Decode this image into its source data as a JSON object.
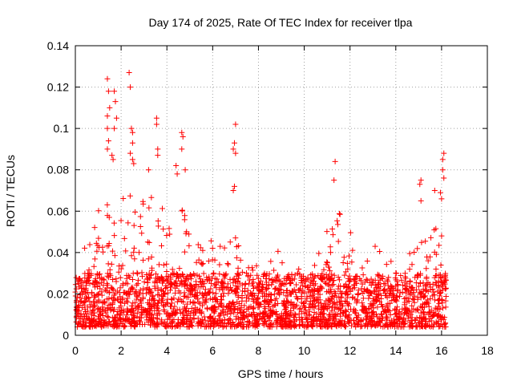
{
  "chart_data": {
    "type": "scatter",
    "title": "Day 174 of 2025, Rate Of TEC Index for receiver tlpa",
    "xlabel": "GPS time / hours",
    "ylabel": "ROTI / TECUs",
    "xlim": [
      0,
      18
    ],
    "ylim": [
      0,
      0.14
    ],
    "x_ticks": [
      "0",
      "2",
      "4",
      "6",
      "8",
      "10",
      "12",
      "14",
      "16",
      "18"
    ],
    "y_ticks": [
      "0",
      "0.02",
      "0.04",
      "0.06",
      "0.08",
      "0.1",
      "0.12",
      "0.14"
    ],
    "grid": true,
    "marker": "plus",
    "color": "#ff0000",
    "series": [
      {
        "x_range": [
          0,
          16.2
        ],
        "dense_band": [
          0.004,
          0.03
        ],
        "envelope": [
          [
            0,
            0.035
          ],
          [
            0.5,
            0.045
          ],
          [
            1.0,
            0.06
          ],
          [
            1.5,
            0.07
          ],
          [
            2.0,
            0.075
          ],
          [
            2.5,
            0.07
          ],
          [
            3.0,
            0.065
          ],
          [
            3.5,
            0.07
          ],
          [
            4.0,
            0.06
          ],
          [
            4.5,
            0.065
          ],
          [
            5.0,
            0.055
          ],
          [
            5.5,
            0.05
          ],
          [
            6.0,
            0.045
          ],
          [
            6.5,
            0.045
          ],
          [
            7.0,
            0.05
          ],
          [
            7.5,
            0.035
          ],
          [
            8.0,
            0.04
          ],
          [
            8.5,
            0.045
          ],
          [
            9.0,
            0.04
          ],
          [
            9.5,
            0.035
          ],
          [
            10.0,
            0.03
          ],
          [
            10.5,
            0.035
          ],
          [
            11.0,
            0.055
          ],
          [
            11.5,
            0.06
          ],
          [
            12.0,
            0.05
          ],
          [
            12.5,
            0.045
          ],
          [
            13.0,
            0.045
          ],
          [
            13.5,
            0.04
          ],
          [
            14.0,
            0.035
          ],
          [
            14.5,
            0.04
          ],
          [
            15.0,
            0.045
          ],
          [
            15.5,
            0.05
          ],
          [
            16.0,
            0.06
          ],
          [
            16.2,
            0.03
          ]
        ],
        "peaks": [
          [
            1.4,
            0.124
          ],
          [
            1.45,
            0.118
          ],
          [
            1.5,
            0.11
          ],
          [
            1.4,
            0.106
          ],
          [
            1.4,
            0.1
          ],
          [
            1.45,
            0.094
          ],
          [
            1.4,
            0.09
          ],
          [
            1.7,
            0.118
          ],
          [
            1.75,
            0.113
          ],
          [
            1.8,
            0.105
          ],
          [
            1.7,
            0.1
          ],
          [
            1.6,
            0.087
          ],
          [
            1.65,
            0.085
          ],
          [
            2.35,
            0.127
          ],
          [
            2.4,
            0.12
          ],
          [
            2.45,
            0.1
          ],
          [
            2.5,
            0.098
          ],
          [
            2.5,
            0.093
          ],
          [
            2.4,
            0.088
          ],
          [
            2.5,
            0.085
          ],
          [
            2.55,
            0.083
          ],
          [
            3.55,
            0.105
          ],
          [
            3.55,
            0.102
          ],
          [
            3.6,
            0.09
          ],
          [
            3.6,
            0.087
          ],
          [
            3.2,
            0.08
          ],
          [
            4.65,
            0.098
          ],
          [
            4.7,
            0.096
          ],
          [
            4.65,
            0.09
          ],
          [
            4.4,
            0.082
          ],
          [
            4.45,
            0.078
          ],
          [
            4.8,
            0.08
          ],
          [
            7.0,
            0.102
          ],
          [
            6.95,
            0.093
          ],
          [
            6.9,
            0.09
          ],
          [
            7.0,
            0.088
          ],
          [
            6.95,
            0.072
          ],
          [
            6.9,
            0.07
          ],
          [
            11.35,
            0.084
          ],
          [
            11.3,
            0.075
          ],
          [
            15.1,
            0.075
          ],
          [
            15.05,
            0.073
          ],
          [
            15.1,
            0.065
          ],
          [
            15.7,
            0.07
          ],
          [
            15.95,
            0.069
          ],
          [
            16.0,
            0.066
          ],
          [
            16.1,
            0.088
          ],
          [
            16.05,
            0.085
          ],
          [
            16.05,
            0.08
          ],
          [
            16.1,
            0.076
          ]
        ]
      }
    ]
  }
}
